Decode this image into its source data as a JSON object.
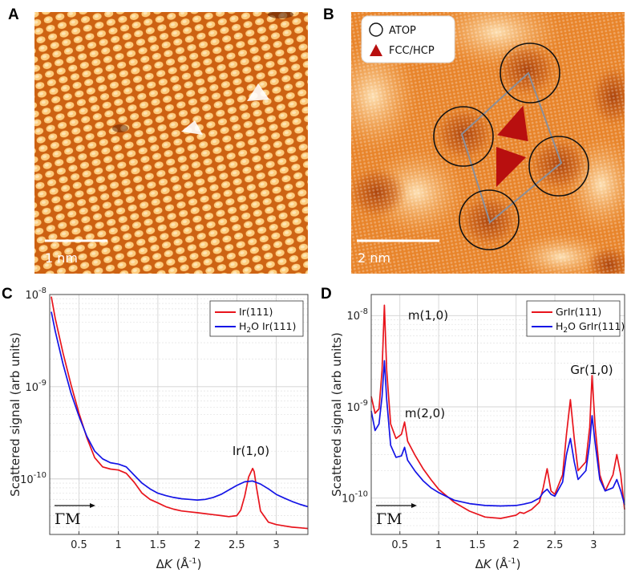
{
  "panels": {
    "A": {
      "label": "A",
      "scale_bar": "1 nm"
    },
    "B": {
      "label": "B",
      "scale_bar": "2 nm",
      "legend": [
        "ATOP",
        "FCC/HCP"
      ]
    },
    "C": {
      "label": "C"
    },
    "D": {
      "label": "D"
    }
  },
  "gamma_m": "ΓM",
  "chart_data": [
    {
      "id": "C",
      "type": "line",
      "title": "",
      "xlabel": "ΔK (Å⁻¹)",
      "ylabel": "Scattered signal (arb units)",
      "xlim": [
        0.13,
        3.4
      ],
      "ylim": [
        2.5e-11,
        1e-08
      ],
      "yscale": "log",
      "xticks": [
        "0.5",
        "1",
        "1.5",
        "2",
        "2.5",
        "3"
      ],
      "yticks": [
        "10-8",
        "10-9",
        "10-10"
      ],
      "grid": true,
      "legend_position": "top-right",
      "annotations": [
        {
          "text": "Ir(1,0)",
          "x": 2.7,
          "y": 1.3e-10
        }
      ],
      "series": [
        {
          "name": "Ir(111)",
          "color": "#e8141c",
          "x": [
            0.15,
            0.2,
            0.3,
            0.4,
            0.5,
            0.6,
            0.7,
            0.8,
            0.9,
            1.0,
            1.1,
            1.2,
            1.3,
            1.4,
            1.5,
            1.6,
            1.7,
            1.8,
            1.9,
            2.0,
            2.1,
            2.2,
            2.3,
            2.4,
            2.5,
            2.55,
            2.6,
            2.65,
            2.7,
            2.72,
            2.75,
            2.8,
            2.9,
            3.0,
            3.1,
            3.2,
            3.3,
            3.4
          ],
          "values": [
            9.5e-09,
            5.5e-09,
            2.3e-09,
            1.05e-09,
            5.2e-10,
            2.8e-10,
            1.7e-10,
            1.35e-10,
            1.28e-10,
            1.25e-10,
            1.15e-10,
            9.2e-11,
            7e-11,
            6e-11,
            5.5e-11,
            5e-11,
            4.7e-11,
            4.5e-11,
            4.4e-11,
            4.3e-11,
            4.2e-11,
            4.1e-11,
            4e-11,
            3.9e-11,
            4e-11,
            4.6e-11,
            6.5e-11,
            1.05e-10,
            1.3e-10,
            1.2e-10,
            8e-11,
            4.5e-11,
            3.4e-11,
            3.2e-11,
            3.1e-11,
            3e-11,
            2.95e-11,
            2.9e-11
          ]
        },
        {
          "name": "H2O Ir(111)",
          "color": "#1414e6",
          "x": [
            0.15,
            0.2,
            0.3,
            0.4,
            0.5,
            0.6,
            0.7,
            0.8,
            0.9,
            1.0,
            1.1,
            1.2,
            1.3,
            1.4,
            1.5,
            1.6,
            1.7,
            1.8,
            1.9,
            2.0,
            2.1,
            2.2,
            2.3,
            2.4,
            2.5,
            2.6,
            2.7,
            2.8,
            2.9,
            3.0,
            3.1,
            3.2,
            3.3,
            3.4
          ],
          "values": [
            6.5e-09,
            4e-09,
            1.75e-09,
            8.5e-10,
            4.8e-10,
            2.9e-10,
            2e-10,
            1.65e-10,
            1.5e-10,
            1.45e-10,
            1.35e-10,
            1.1e-10,
            9e-11,
            7.8e-11,
            7e-11,
            6.6e-11,
            6.3e-11,
            6.1e-11,
            6e-11,
            5.9e-11,
            6e-11,
            6.3e-11,
            6.8e-11,
            7.6e-11,
            8.5e-11,
            9.3e-11,
            9.5e-11,
            8.8e-11,
            7.8e-11,
            6.8e-11,
            6.2e-11,
            5.7e-11,
            5.3e-11,
            5e-11
          ]
        }
      ]
    },
    {
      "id": "D",
      "type": "line",
      "title": "",
      "xlabel": "ΔK (Å⁻¹)",
      "ylabel": "Scattered signal (arb units)",
      "xlim": [
        0.13,
        3.4
      ],
      "ylim": [
        4e-11,
        1.7e-08
      ],
      "yscale": "log",
      "xticks": [
        "0.5",
        "1",
        "1.5",
        "2",
        "2.5",
        "3"
      ],
      "yticks": [
        "10-8",
        "10-9",
        "10-10"
      ],
      "grid": true,
      "legend_position": "top-right",
      "annotations": [
        {
          "text": "m(1,0)",
          "x": 0.3,
          "y": 1.3e-08
        },
        {
          "text": "m(2,0)",
          "x": 0.58,
          "y": 7e-10
        },
        {
          "text": "Gr(1,0)",
          "x": 2.98,
          "y": 2.2e-09
        }
      ],
      "series": [
        {
          "name": "GrIr(111)",
          "color": "#e8141c",
          "x": [
            0.13,
            0.18,
            0.23,
            0.27,
            0.3,
            0.33,
            0.38,
            0.45,
            0.52,
            0.56,
            0.6,
            0.7,
            0.8,
            0.9,
            1.0,
            1.2,
            1.4,
            1.6,
            1.8,
            2.0,
            2.05,
            2.1,
            2.2,
            2.3,
            2.35,
            2.4,
            2.45,
            2.5,
            2.6,
            2.65,
            2.7,
            2.75,
            2.8,
            2.9,
            2.95,
            2.98,
            3.02,
            3.08,
            3.15,
            3.25,
            3.3,
            3.35,
            3.4
          ],
          "values": [
            1.3e-09,
            8.5e-10,
            9.5e-10,
            2.5e-09,
            1.3e-08,
            2.5e-09,
            6.5e-10,
            4.5e-10,
            5e-10,
            6.8e-10,
            4.2e-10,
            2.9e-10,
            2.1e-10,
            1.6e-10,
            1.25e-10,
            9e-11,
            7.2e-11,
            6.2e-11,
            6e-11,
            6.5e-11,
            7e-11,
            6.8e-11,
            7.5e-11,
            9e-11,
            1.3e-10,
            2.1e-10,
            1.2e-10,
            1.1e-10,
            1.8e-10,
            5e-10,
            1.2e-09,
            4.5e-10,
            2e-10,
            2.5e-10,
            6e-10,
            2.2e-09,
            6e-10,
            1.8e-10,
            1.2e-10,
            1.8e-10,
            3e-10,
            1.8e-10,
            7.5e-11
          ]
        },
        {
          "name": "H2O GrIr(111)",
          "color": "#1414e6",
          "x": [
            0.13,
            0.18,
            0.23,
            0.27,
            0.3,
            0.33,
            0.38,
            0.45,
            0.52,
            0.56,
            0.6,
            0.7,
            0.8,
            0.9,
            1.0,
            1.2,
            1.4,
            1.6,
            1.8,
            2.0,
            2.1,
            2.2,
            2.3,
            2.35,
            2.4,
            2.45,
            2.5,
            2.6,
            2.65,
            2.7,
            2.75,
            2.8,
            2.9,
            2.95,
            2.98,
            3.02,
            3.08,
            3.15,
            3.25,
            3.3,
            3.35,
            3.4
          ],
          "values": [
            9e-10,
            5.5e-10,
            6.5e-10,
            1.3e-09,
            3.2e-09,
            1.2e-09,
            3.8e-10,
            2.8e-10,
            2.9e-10,
            3.6e-10,
            2.6e-10,
            1.95e-10,
            1.55e-10,
            1.3e-10,
            1.15e-10,
            9.5e-11,
            8.7e-11,
            8.3e-11,
            8.2e-11,
            8.3e-11,
            8.6e-11,
            9e-11,
            1e-10,
            1.15e-10,
            1.25e-10,
            1.1e-10,
            1.05e-10,
            1.5e-10,
            3e-10,
            4.5e-10,
            2.5e-10,
            1.6e-10,
            2e-10,
            4e-10,
            8e-10,
            4e-10,
            1.6e-10,
            1.2e-10,
            1.3e-10,
            1.6e-10,
            1.2e-10,
            8.5e-11
          ]
        }
      ]
    }
  ]
}
